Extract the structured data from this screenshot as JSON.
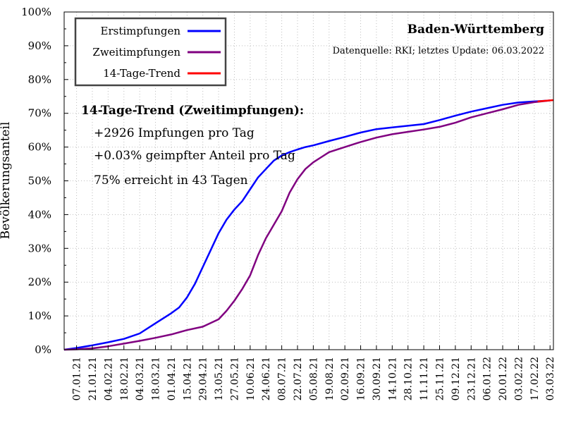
{
  "chart_data": {
    "type": "line",
    "title": "Baden-Württemberg",
    "subtitle": "Datenquelle: RKI; letztes Update: 06.03.2022",
    "ylabel": "Bevölkerungsanteil",
    "ylim": [
      0,
      100
    ],
    "yticks": [
      "0%",
      "10%",
      "20%",
      "30%",
      "40%",
      "50%",
      "60%",
      "70%",
      "80%",
      "90%",
      "100%"
    ],
    "xlim": [
      "2020-12-27",
      "2022-03-06"
    ],
    "xticks": [
      "07.01.21",
      "21.01.21",
      "04.02.21",
      "18.02.21",
      "04.03.21",
      "18.03.21",
      "01.04.21",
      "15.04.21",
      "29.04.21",
      "13.05.21",
      "27.05.21",
      "10.06.21",
      "24.06.21",
      "08.07.21",
      "22.07.21",
      "05.08.21",
      "19.08.21",
      "02.09.21",
      "16.09.21",
      "30.09.21",
      "14.10.21",
      "28.10.21",
      "11.11.21",
      "25.11.21",
      "09.12.21",
      "23.12.21",
      "06.01.22",
      "20.01.22",
      "03.02.22",
      "17.02.22",
      "03.03.22"
    ],
    "grid": true,
    "legend_position": "top-left",
    "series": [
      {
        "name": "Erstimpfungen",
        "color": "#0000ff",
        "x": [
          "2020-12-27",
          "2021-01-07",
          "2021-01-21",
          "2021-02-04",
          "2021-02-18",
          "2021-03-04",
          "2021-03-18",
          "2021-04-01",
          "2021-04-08",
          "2021-04-15",
          "2021-04-22",
          "2021-04-29",
          "2021-05-06",
          "2021-05-13",
          "2021-05-20",
          "2021-05-27",
          "2021-06-03",
          "2021-06-10",
          "2021-06-17",
          "2021-06-24",
          "2021-07-01",
          "2021-07-08",
          "2021-07-15",
          "2021-07-22",
          "2021-07-29",
          "2021-08-05",
          "2021-08-19",
          "2021-09-02",
          "2021-09-16",
          "2021-09-30",
          "2021-10-14",
          "2021-10-28",
          "2021-11-11",
          "2021-11-25",
          "2021-12-09",
          "2021-12-23",
          "2022-01-06",
          "2022-01-20",
          "2022-02-03",
          "2022-02-17",
          "2022-03-03"
        ],
        "values": [
          0,
          0.5,
          1.3,
          2.2,
          3.2,
          4.8,
          7.8,
          10.8,
          12.5,
          15.5,
          19.5,
          24.5,
          29.5,
          34.5,
          38.5,
          41.5,
          44.0,
          47.5,
          51.0,
          53.5,
          56.0,
          57.5,
          58.5,
          59.3,
          60.0,
          60.5,
          61.8,
          63.0,
          64.3,
          65.3,
          65.8,
          66.3,
          66.8,
          68.0,
          69.3,
          70.5,
          71.5,
          72.5,
          73.2,
          73.5,
          73.8
        ]
      },
      {
        "name": "Zweitimpfungen",
        "color": "#800080",
        "x": [
          "2020-12-27",
          "2021-01-07",
          "2021-01-21",
          "2021-02-04",
          "2021-02-18",
          "2021-03-04",
          "2021-03-18",
          "2021-04-01",
          "2021-04-15",
          "2021-04-29",
          "2021-05-13",
          "2021-05-20",
          "2021-05-27",
          "2021-06-03",
          "2021-06-10",
          "2021-06-17",
          "2021-06-24",
          "2021-07-01",
          "2021-07-08",
          "2021-07-15",
          "2021-07-22",
          "2021-07-29",
          "2021-08-05",
          "2021-08-12",
          "2021-08-19",
          "2021-09-02",
          "2021-09-16",
          "2021-09-30",
          "2021-10-14",
          "2021-10-28",
          "2021-11-11",
          "2021-11-25",
          "2021-12-09",
          "2021-12-23",
          "2022-01-06",
          "2022-01-20",
          "2022-02-03",
          "2022-02-17",
          "2022-03-03"
        ],
        "values": [
          0,
          0.1,
          0.4,
          1.0,
          1.8,
          2.6,
          3.5,
          4.5,
          5.8,
          6.8,
          9.0,
          11.5,
          14.5,
          18.0,
          22.0,
          28.0,
          33.0,
          37.0,
          41.0,
          46.5,
          50.5,
          53.5,
          55.5,
          57.0,
          58.5,
          60.0,
          61.5,
          62.8,
          63.8,
          64.5,
          65.2,
          66.0,
          67.2,
          68.8,
          70.0,
          71.2,
          72.5,
          73.3,
          73.8
        ]
      },
      {
        "name": "14-Tage-Trend",
        "color": "#ff0000",
        "x": [
          "2022-02-20",
          "2022-03-06"
        ],
        "values": [
          73.5,
          73.9
        ]
      }
    ],
    "annotations": {
      "heading": "14-Tage-Trend (Zweitimpfungen):",
      "lines": [
        "+2926 Impfungen pro Tag",
        "+0.03% geimpfter Anteil pro Tag",
        "75% erreicht in 43 Tagen"
      ]
    }
  }
}
